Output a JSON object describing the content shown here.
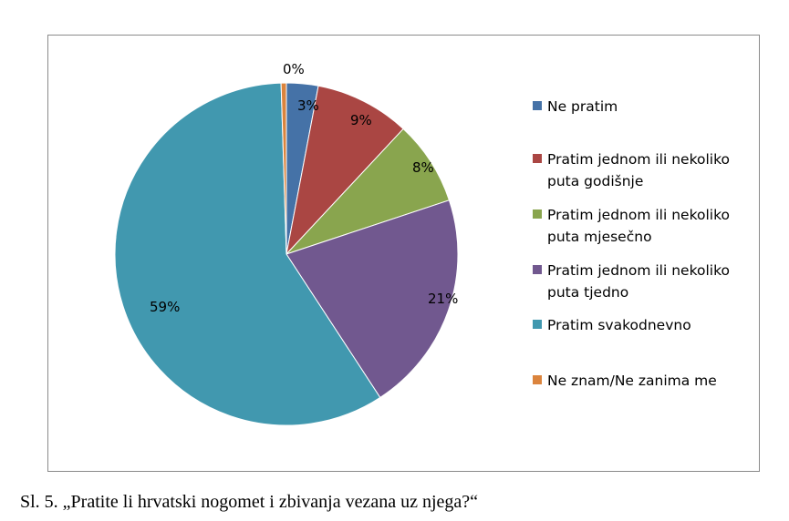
{
  "chart_data": {
    "type": "pie",
    "title": "",
    "categories": [
      "Ne pratim",
      "Pratim jednom ili nekoliko puta godišnje",
      "Pratim jednom ili nekoliko puta mjesečno",
      "Pratim jednom ili nekoliko puta tjedno",
      "Pratim svakodnevno",
      "Ne znam/Ne zanima me"
    ],
    "values": [
      3,
      9,
      8,
      21,
      59,
      0.5
    ],
    "data_labels": [
      "3%",
      "9%",
      "8%",
      "21%",
      "59%",
      "0%"
    ],
    "colors": [
      "#4572A7",
      "#AA4643",
      "#89A54E",
      "#71588F",
      "#4198AF",
      "#DB843D"
    ],
    "legend_position": "right"
  },
  "legend": {
    "items": [
      "Ne pratim",
      "Pratim jednom ili nekoliko puta godišnje",
      "Pratim jednom ili nekoliko puta mjesečno",
      "Pratim jednom ili nekoliko puta tjedno",
      "Pratim svakodnevno",
      "Ne znam/Ne zanima me"
    ]
  },
  "caption": "Sl. 5. „Pratite li hrvatski nogomet i zbivanja vezana uz njega?“"
}
